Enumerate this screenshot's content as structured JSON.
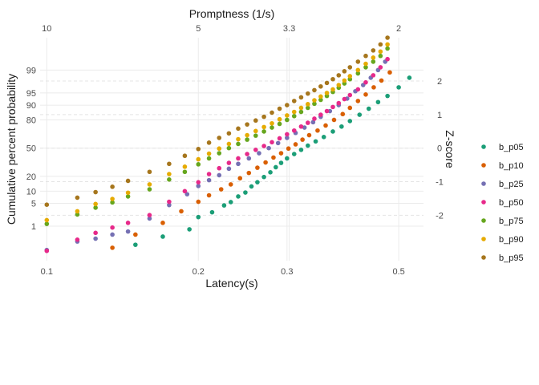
{
  "chart_data": {
    "type": "scatter",
    "title": "",
    "xlabel": "Latency(s)",
    "x2label": "Promptness (1/s)",
    "ylabel": "Cumulative percent probability",
    "y2label": "Z-score",
    "x_scale": "log",
    "xlim": [
      0.097,
      0.56
    ],
    "y_scale": "normal-probability (percent)",
    "ylim_percent": [
      0.04,
      99.95
    ],
    "x_ticks": [
      0.1,
      0.2,
      0.3,
      0.5
    ],
    "x_tick_labels": [
      "0.1",
      "0.2",
      "0.3",
      "0.5"
    ],
    "x2_ticks": [
      10,
      5,
      3.3,
      2
    ],
    "x2_tick_labels": [
      "10",
      "5",
      "3.3",
      "2"
    ],
    "y_ticks_percent": [
      1,
      5,
      10,
      20,
      50,
      80,
      90,
      95,
      99
    ],
    "y_tick_labels": [
      "1",
      "5",
      "10",
      "20",
      "50",
      "80",
      "90",
      "95",
      "99"
    ],
    "y2_ticks_z": [
      -2,
      -1,
      0,
      1,
      2
    ],
    "y2_tick_labels": [
      "-2",
      "-1",
      "0",
      "1",
      "2"
    ],
    "grid": true,
    "legend_position": "right",
    "series": [
      {
        "name": "b_p05",
        "color": "#1b9e77",
        "x": [
          0.15,
          0.17,
          0.192,
          0.2,
          0.213,
          0.225,
          0.232,
          0.24,
          0.248,
          0.255,
          0.262,
          0.27,
          0.278,
          0.285,
          0.292,
          0.3,
          0.31,
          0.32,
          0.33,
          0.342,
          0.355,
          0.37,
          0.385,
          0.4,
          0.418,
          0.436,
          0.455,
          0.475,
          0.5,
          0.525
        ],
        "y": [
          0.2,
          0.42,
          0.78,
          2.0,
          2.8,
          4.4,
          5.4,
          7.5,
          9.3,
          12.7,
          15.5,
          19.5,
          23.6,
          28.5,
          33.0,
          38.0,
          43.0,
          48.0,
          53.0,
          58.0,
          63.0,
          69.0,
          74.0,
          79.0,
          84.0,
          88.0,
          91.5,
          94.0,
          96.5,
          98.2
        ]
      },
      {
        "name": "b_p10",
        "color": "#d95f02",
        "x": [
          0.135,
          0.15,
          0.17,
          0.185,
          0.2,
          0.21,
          0.222,
          0.232,
          0.242,
          0.252,
          0.262,
          0.272,
          0.282,
          0.292,
          0.302,
          0.312,
          0.322,
          0.332,
          0.345,
          0.358,
          0.372,
          0.387,
          0.4,
          0.415,
          0.43,
          0.446,
          0.462,
          0.48
        ],
        "y": [
          0.15,
          0.5,
          1.3,
          3.0,
          5.5,
          8.0,
          11.0,
          14.0,
          18.5,
          23.0,
          28.0,
          33.5,
          39.0,
          44.0,
          49.5,
          54.5,
          60.0,
          65.0,
          70.0,
          75.0,
          80.0,
          84.5,
          88.5,
          92.0,
          94.5,
          96.5,
          97.8,
          98.8
        ]
      },
      {
        "name": "b_p25",
        "color": "#7570b3",
        "x": [
          0.1,
          0.115,
          0.125,
          0.135,
          0.145,
          0.16,
          0.175,
          0.19,
          0.2,
          0.21,
          0.22,
          0.23,
          0.24,
          0.252,
          0.264,
          0.276,
          0.288,
          0.3,
          0.312,
          0.325,
          0.338,
          0.35,
          0.365,
          0.38,
          0.395,
          0.41,
          0.425,
          0.44,
          0.455,
          0.47
        ],
        "y": [
          0.12,
          0.27,
          0.35,
          0.5,
          0.65,
          1.8,
          4.5,
          8.5,
          13.0,
          17.0,
          21.0,
          27.0,
          32.0,
          38.0,
          44.0,
          50.0,
          56.0,
          62.0,
          67.5,
          73.0,
          78.0,
          82.5,
          86.5,
          90.0,
          93.0,
          95.5,
          97.0,
          98.2,
          99.0,
          99.5
        ]
      },
      {
        "name": "b_p50",
        "color": "#e7298a",
        "x": [
          0.1,
          0.115,
          0.125,
          0.135,
          0.145,
          0.16,
          0.175,
          0.188,
          0.2,
          0.21,
          0.22,
          0.23,
          0.24,
          0.25,
          0.26,
          0.27,
          0.28,
          0.29,
          0.3,
          0.31,
          0.32,
          0.33,
          0.34,
          0.35,
          0.36,
          0.37,
          0.38,
          0.39,
          0.4,
          0.415,
          0.43,
          0.445,
          0.46,
          0.475
        ],
        "y": [
          0.11,
          0.32,
          0.58,
          0.9,
          1.3,
          2.3,
          5.5,
          10.0,
          15.5,
          22.0,
          27.5,
          33.0,
          38.0,
          43.0,
          48.0,
          52.5,
          57.0,
          61.5,
          66.0,
          70.0,
          74.0,
          77.5,
          81.0,
          84.0,
          86.5,
          89.0,
          91.0,
          92.8,
          94.3,
          96.0,
          97.5,
          98.5,
          99.2,
          99.6
        ]
      },
      {
        "name": "b_p75",
        "color": "#66a61e",
        "x": [
          0.1,
          0.115,
          0.125,
          0.135,
          0.145,
          0.16,
          0.175,
          0.188,
          0.2,
          0.21,
          0.22,
          0.23,
          0.24,
          0.25,
          0.26,
          0.27,
          0.28,
          0.29,
          0.3,
          0.31,
          0.32,
          0.33,
          0.34,
          0.35,
          0.36,
          0.37,
          0.38,
          0.39,
          0.4,
          0.415,
          0.43,
          0.445,
          0.46,
          0.475
        ],
        "y": [
          1.2,
          2.4,
          3.8,
          5.3,
          7.5,
          11.0,
          17.5,
          24.0,
          31.5,
          38.0,
          44.0,
          50.0,
          55.0,
          60.0,
          64.5,
          69.0,
          73.0,
          76.5,
          80.0,
          83.0,
          86.0,
          88.5,
          90.7,
          92.5,
          94.0,
          95.3,
          96.4,
          97.3,
          98.0,
          98.7,
          99.2,
          99.5,
          99.7,
          99.85
        ]
      },
      {
        "name": "b_p90",
        "color": "#e6ab02",
        "x": [
          0.1,
          0.115,
          0.125,
          0.135,
          0.145,
          0.16,
          0.175,
          0.188,
          0.2,
          0.21,
          0.22,
          0.23,
          0.24,
          0.25,
          0.26,
          0.27,
          0.28,
          0.29,
          0.3,
          0.31,
          0.32,
          0.33,
          0.34,
          0.35,
          0.36,
          0.37,
          0.38,
          0.39,
          0.4,
          0.415,
          0.43,
          0.445,
          0.46,
          0.475
        ],
        "y": [
          1.6,
          3.0,
          4.8,
          6.5,
          9.2,
          14.0,
          22.0,
          29.0,
          37.0,
          43.5,
          49.5,
          55.0,
          60.5,
          65.0,
          69.5,
          73.5,
          77.0,
          80.5,
          83.5,
          86.0,
          88.5,
          90.5,
          92.3,
          93.8,
          95.0,
          96.0,
          97.0,
          97.8,
          98.4,
          99.0,
          99.4,
          99.65,
          99.8,
          99.9
        ]
      },
      {
        "name": "b_p95",
        "color": "#a6761d",
        "x": [
          0.1,
          0.115,
          0.125,
          0.135,
          0.145,
          0.16,
          0.175,
          0.188,
          0.2,
          0.21,
          0.22,
          0.23,
          0.24,
          0.25,
          0.26,
          0.27,
          0.28,
          0.29,
          0.3,
          0.31,
          0.32,
          0.33,
          0.34,
          0.35,
          0.36,
          0.37,
          0.38,
          0.39,
          0.4,
          0.415,
          0.43,
          0.445,
          0.46,
          0.475
        ],
        "y": [
          4.6,
          7.0,
          9.5,
          12.5,
          16.5,
          24.0,
          32.0,
          41.0,
          49.0,
          56.5,
          62.0,
          67.0,
          72.0,
          76.0,
          79.5,
          82.5,
          85.5,
          88.0,
          90.0,
          92.0,
          93.5,
          94.8,
          95.8,
          96.7,
          97.4,
          98.0,
          98.5,
          98.9,
          99.2,
          99.5,
          99.7,
          99.82,
          99.9,
          99.95
        ]
      }
    ]
  }
}
